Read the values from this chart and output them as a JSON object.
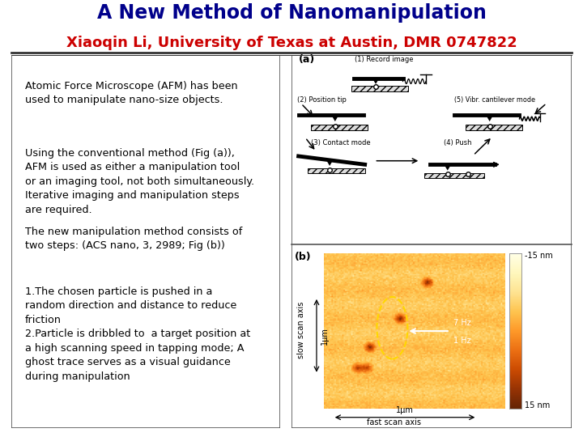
{
  "title": "A New Method of Nanomanipulation",
  "title_color": "#00008B",
  "subtitle": "Xiaoqin Li, University of Texas at Austin, DMR 0747822",
  "subtitle_color": "#CC0000",
  "background_color": "#FFFFFF",
  "left_text_blocks": [
    "Atomic Force Microscope (AFM) has been\nused to manipulate nano-size objects.",
    "Using the conventional method (Fig (a)),\nAFM is used as either a manipulation tool\nor an imaging tool, not both simultaneously.\nIterative imaging and manipulation steps\nare required.",
    "The new manipulation method consists of\ntwo steps: (ACS nano, 3, 2989; Fig (b))",
    "1.The chosen particle is pushed in a\nrandom direction and distance to reduce\nfriction\n2.Particle is dribbled to  a target position at\na high scanning speed in tapping mode; A\nghost trace serves as a visual guidance\nduring manipulation"
  ],
  "title_fontsize": 17,
  "subtitle_fontsize": 13,
  "body_fontsize": 9.2
}
